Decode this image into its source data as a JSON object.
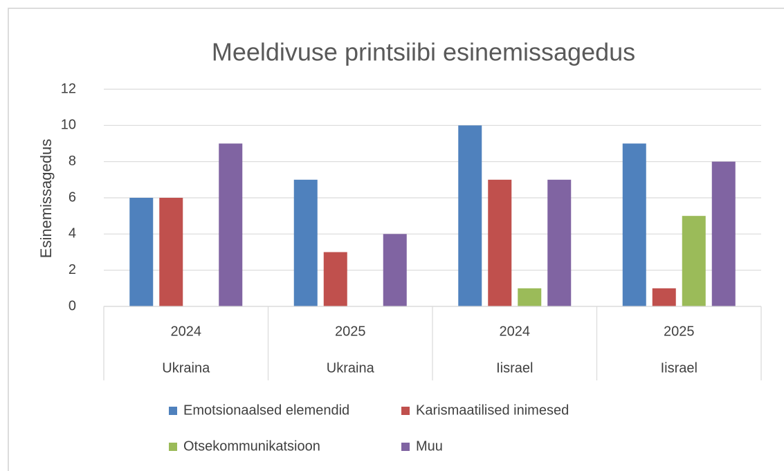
{
  "chart_data": {
    "type": "bar",
    "title": "Meeldivuse printsiibi esinemissagedus",
    "y_label": "Esinemissagedus",
    "categories": [
      "2024",
      "2025",
      "2024",
      "2025"
    ],
    "category_groups": [
      "Ukraina",
      "Ukraina",
      "Iisrael",
      "Iisrael"
    ],
    "series": [
      {
        "name": "Emotsionaalsed elemendid",
        "color": "#4f81bd",
        "values": [
          6,
          7,
          10,
          9
        ]
      },
      {
        "name": "Karismaatilised inimesed",
        "color": "#c0504d",
        "values": [
          6,
          3,
          7,
          1
        ]
      },
      {
        "name": "Otsekommunikatsioon",
        "color": "#9bbb59",
        "values": [
          0,
          0,
          1,
          5
        ]
      },
      {
        "name": "Muu",
        "color": "#8064a2",
        "values": [
          9,
          4,
          7,
          8
        ]
      }
    ],
    "ylim": [
      0,
      12
    ],
    "yticks": [
      0,
      2,
      4,
      6,
      8,
      10,
      12
    ],
    "grid": true,
    "legend": "bottom"
  }
}
